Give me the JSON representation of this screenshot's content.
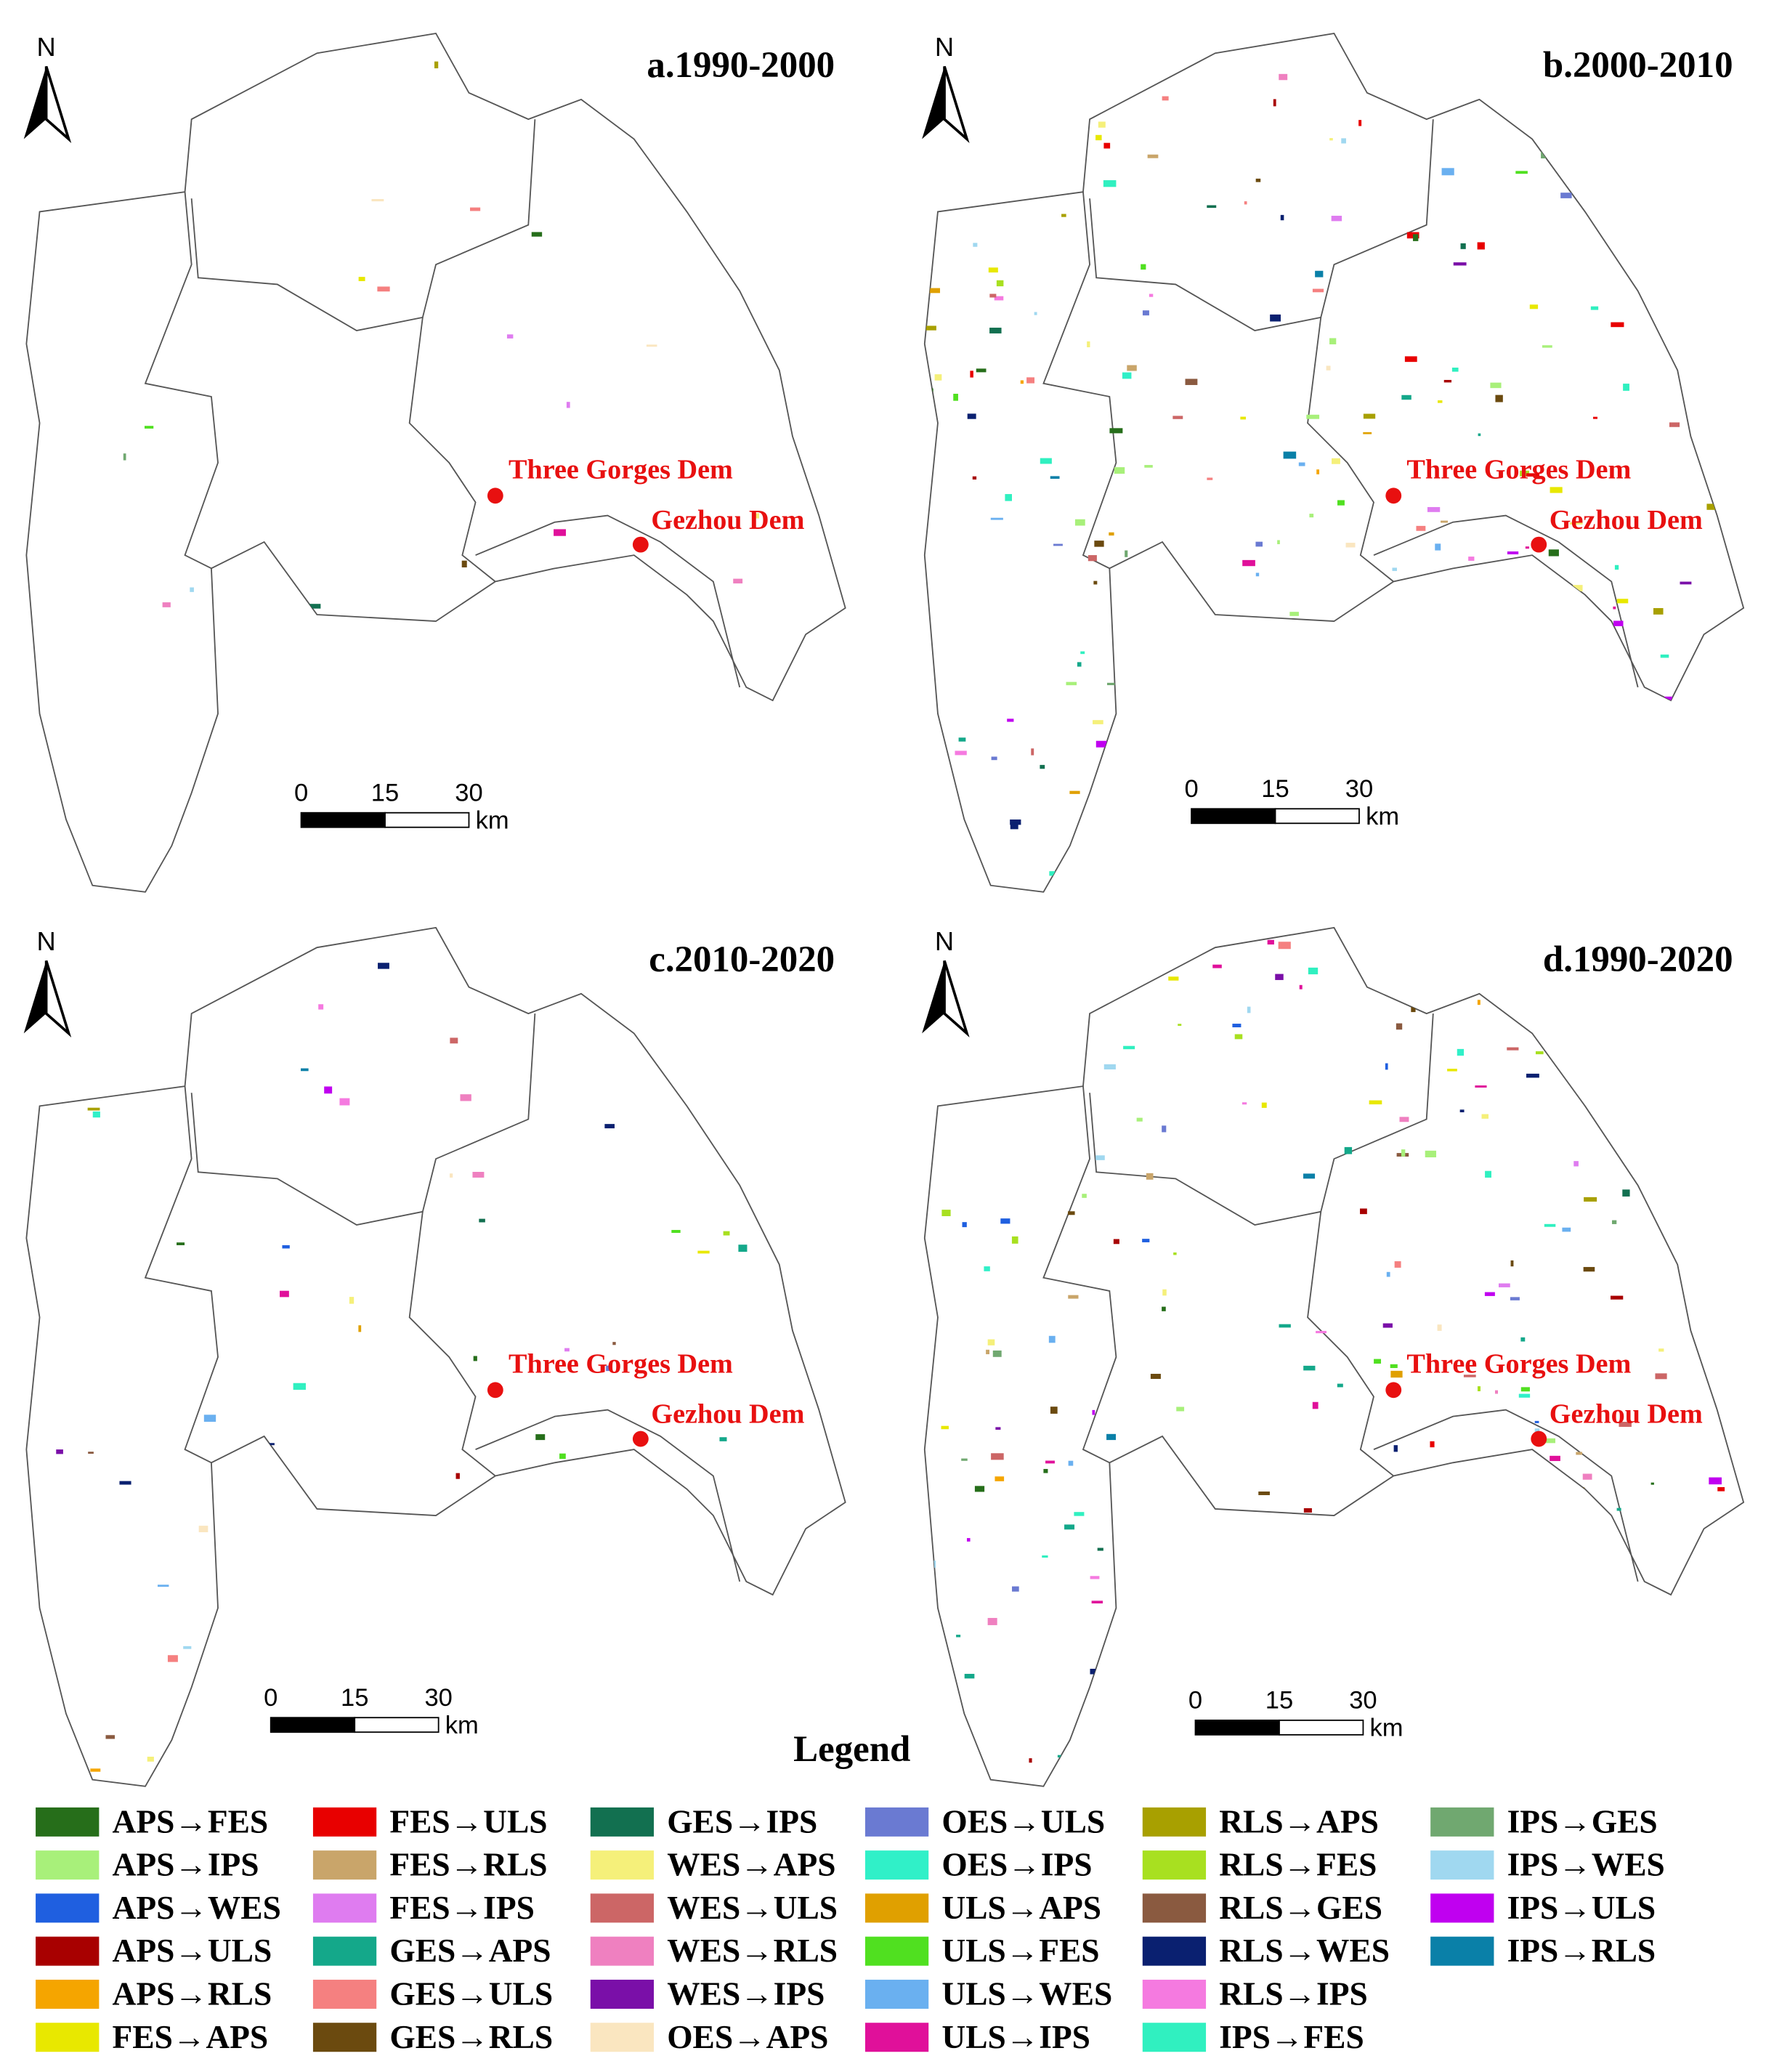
{
  "panels": [
    {
      "title": "a.1990-2000",
      "north": "N",
      "dams": [
        {
          "label": "Three Gorges Dem"
        },
        {
          "label": "Gezhou Dem"
        }
      ],
      "scale_bar": {
        "ticks": [
          0,
          15,
          30
        ],
        "unit": "km"
      }
    },
    {
      "title": "b.2000-2010",
      "north": "N",
      "dams": [
        {
          "label": "Three Gorges Dem"
        },
        {
          "label": "Gezhou Dem"
        }
      ],
      "scale_bar": {
        "ticks": [
          0,
          15,
          30
        ],
        "unit": "km"
      }
    },
    {
      "title": "c.2010-2020",
      "north": "N",
      "dams": [
        {
          "label": "Three Gorges Dem"
        },
        {
          "label": "Gezhou Dem"
        }
      ],
      "scale_bar": {
        "ticks": [
          0,
          15,
          30
        ],
        "unit": "km"
      }
    },
    {
      "title": "d.1990-2020",
      "north": "N",
      "dams": [
        {
          "label": "Three Gorges Dem"
        },
        {
          "label": "Gezhou Dem"
        }
      ],
      "scale_bar": {
        "ticks": [
          0,
          15,
          30
        ],
        "unit": "km"
      }
    }
  ],
  "legend": {
    "title": "Legend",
    "items": [
      {
        "label": "APS→FES",
        "color": "#266e1a"
      },
      {
        "label": "APS→IPS",
        "color": "#a8f07a"
      },
      {
        "label": "APS→WES",
        "color": "#1f5fe0"
      },
      {
        "label": "APS→ULS",
        "color": "#a80000"
      },
      {
        "label": "APS→RLS",
        "color": "#f5a500"
      },
      {
        "label": "FES→APS",
        "color": "#e8e800"
      },
      {
        "label": "FES→ULS",
        "color": "#e80000"
      },
      {
        "label": "FES→RLS",
        "color": "#c9a56a"
      },
      {
        "label": "FES→IPS",
        "color": "#df7cf0"
      },
      {
        "label": "GES→APS",
        "color": "#14a88a"
      },
      {
        "label": "GES→ULS",
        "color": "#f58080"
      },
      {
        "label": "GES→RLS",
        "color": "#6b4a0f"
      },
      {
        "label": "GES→IPS",
        "color": "#127050"
      },
      {
        "label": "WES→APS",
        "color": "#f5f07a"
      },
      {
        "label": "WES→ULS",
        "color": "#cc6666"
      },
      {
        "label": "WES→RLS",
        "color": "#ef80c0"
      },
      {
        "label": "WES→IPS",
        "color": "#7a0fa8"
      },
      {
        "label": "OES→APS",
        "color": "#fae6c0"
      },
      {
        "label": "OES→ULS",
        "color": "#6a7ad2"
      },
      {
        "label": "OES→IPS",
        "color": "#30f0c8"
      },
      {
        "label": "ULS→APS",
        "color": "#e0a000"
      },
      {
        "label": "ULS→FES",
        "color": "#50e020"
      },
      {
        "label": "ULS→WES",
        "color": "#6ab0f0"
      },
      {
        "label": "ULS→IPS",
        "color": "#e0109a"
      },
      {
        "label": "RLS→APS",
        "color": "#a8a000"
      },
      {
        "label": "RLS→FES",
        "color": "#a8e020"
      },
      {
        "label": "RLS→GES",
        "color": "#8a5a40"
      },
      {
        "label": "RLS→WES",
        "color": "#0a2070"
      },
      {
        "label": "RLS→IPS",
        "color": "#f57ae0"
      },
      {
        "label": "IPS→FES",
        "color": "#30f0c0"
      },
      {
        "label": "IPS→GES",
        "color": "#70a870"
      },
      {
        "label": "IPS→WES",
        "color": "#a0d8f0"
      },
      {
        "label": "IPS→ULS",
        "color": "#c000f0"
      },
      {
        "label": "IPS→RLS",
        "color": "#0a80a8"
      }
    ]
  }
}
